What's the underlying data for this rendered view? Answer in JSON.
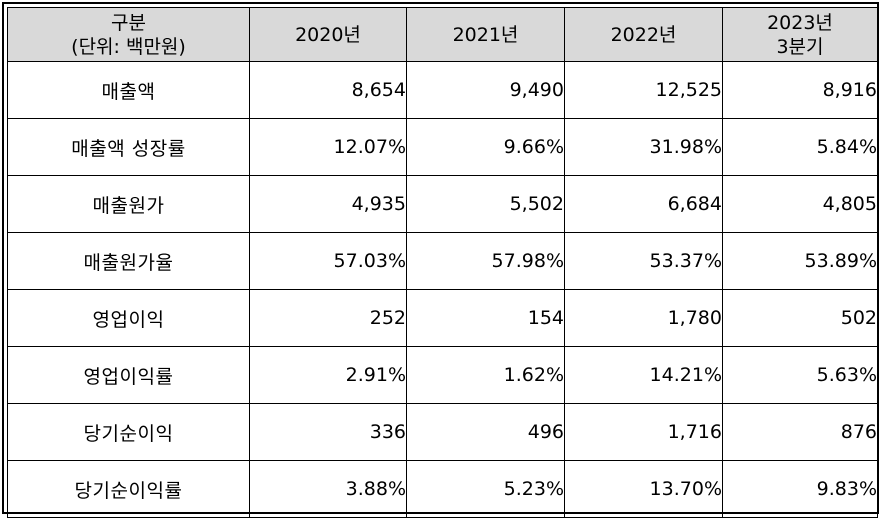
{
  "table": {
    "headers": [
      {
        "lines": [
          "구분",
          "(단위: 백만원)"
        ]
      },
      {
        "lines": [
          "2020년"
        ]
      },
      {
        "lines": [
          "2021년"
        ]
      },
      {
        "lines": [
          "2022년"
        ]
      },
      {
        "lines": [
          "2023년",
          "3분기"
        ]
      }
    ],
    "rows": [
      {
        "label": "매출액",
        "values": [
          "8,654",
          "9,490",
          "12,525",
          "8,916"
        ]
      },
      {
        "label": "매출액 성장률",
        "values": [
          "12.07%",
          "9.66%",
          "31.98%",
          "5.84%"
        ]
      },
      {
        "label": "매출원가",
        "values": [
          "4,935",
          "5,502",
          "6,684",
          "4,805"
        ]
      },
      {
        "label": "매출원가율",
        "values": [
          "57.03%",
          "57.98%",
          "53.37%",
          "53.89%"
        ]
      },
      {
        "label": "영업이익",
        "values": [
          "252",
          "154",
          "1,780",
          "502"
        ]
      },
      {
        "label": "영업이익률",
        "values": [
          "2.91%",
          "1.62%",
          "14.21%",
          "5.63%"
        ]
      },
      {
        "label": "당기순이익",
        "values": [
          "336",
          "496",
          "1,716",
          "876"
        ]
      },
      {
        "label": "당기순이익률",
        "values": [
          "3.88%",
          "5.23%",
          "13.70%",
          "9.83%"
        ]
      }
    ]
  },
  "colors": {
    "header_background": "#d9d9d9",
    "border": "#000000",
    "text": "#000000"
  }
}
